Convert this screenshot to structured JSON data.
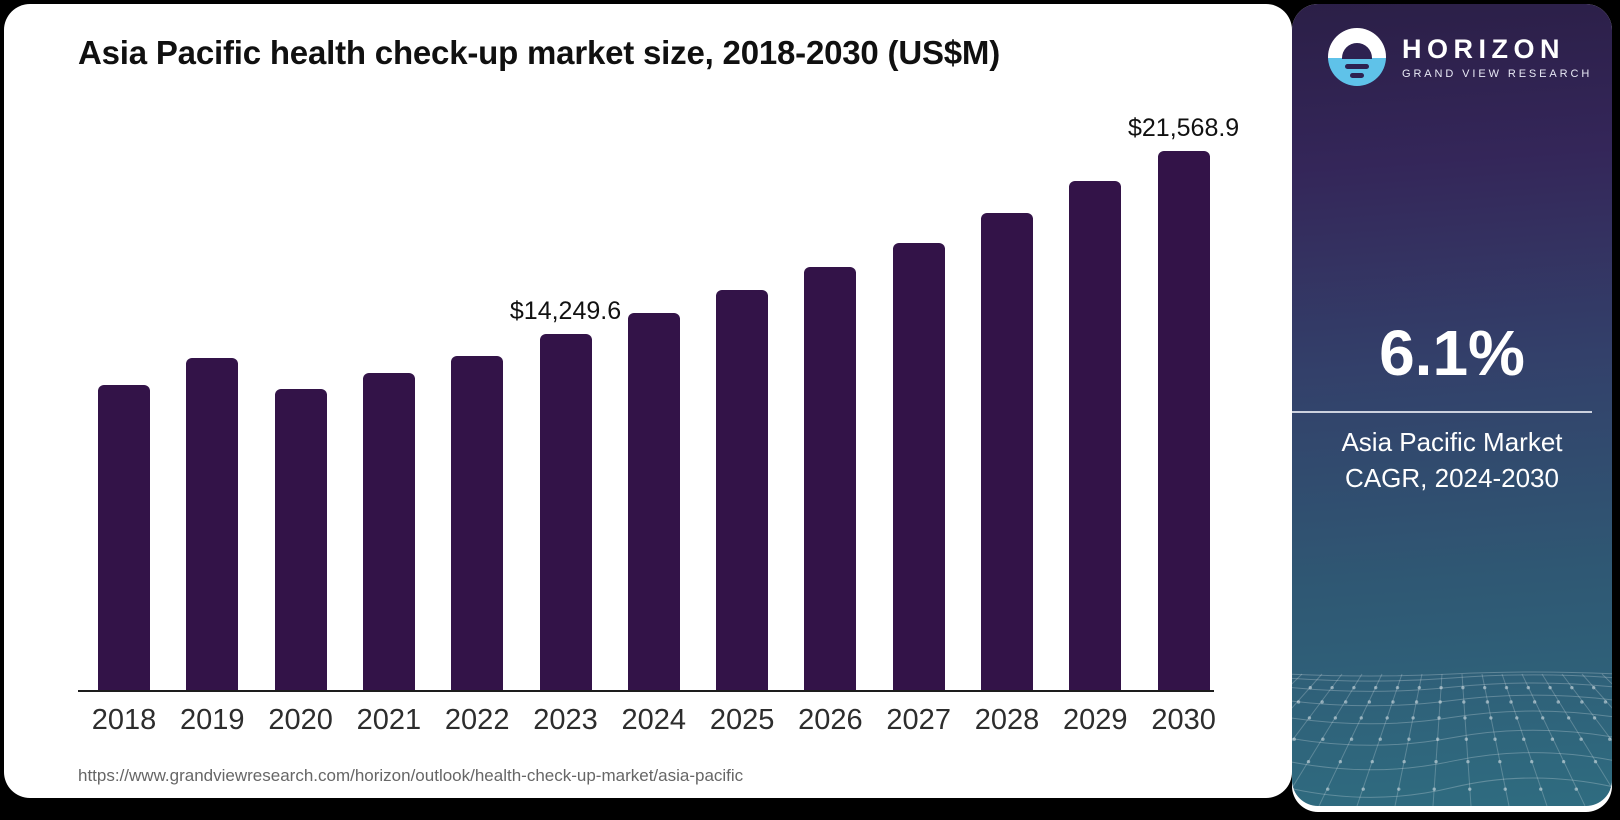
{
  "page": {
    "source_url": "https://www.grandviewresearch.com/horizon/outlook/health-check-up-market/asia-pacific"
  },
  "chart_data": {
    "type": "bar",
    "title": "Asia Pacific health check-up market size, 2018-2030 (US$M)",
    "categories": [
      "2018",
      "2019",
      "2020",
      "2021",
      "2022",
      "2023",
      "2024",
      "2025",
      "2026",
      "2027",
      "2028",
      "2029",
      "2030"
    ],
    "values": [
      12200,
      13280,
      12040,
      12680,
      13360,
      14249.6,
      15080,
      16000,
      16920,
      17880,
      19080,
      20360,
      21568.9
    ],
    "point_labels": {
      "2023": "$14,249.6",
      "2030": "$21,568.9"
    },
    "xlabel": "",
    "ylabel": "",
    "ylim": [
      0,
      22500
    ],
    "grid": false,
    "legend": "none",
    "bar_color": "#331348"
  },
  "sidebar": {
    "brand": {
      "name": "HORIZON",
      "subtitle": "GRAND VIEW RESEARCH",
      "logo_icon": "horizon-sun-icon"
    },
    "stat": {
      "value": "6.1%",
      "caption_line1": "Asia Pacific Market",
      "caption_line2": "CAGR, 2024-2030"
    },
    "colors": {
      "gradient_top": "#2b1f47",
      "gradient_bottom": "#2f6c80",
      "accent_blue": "#5fc2e9"
    }
  }
}
